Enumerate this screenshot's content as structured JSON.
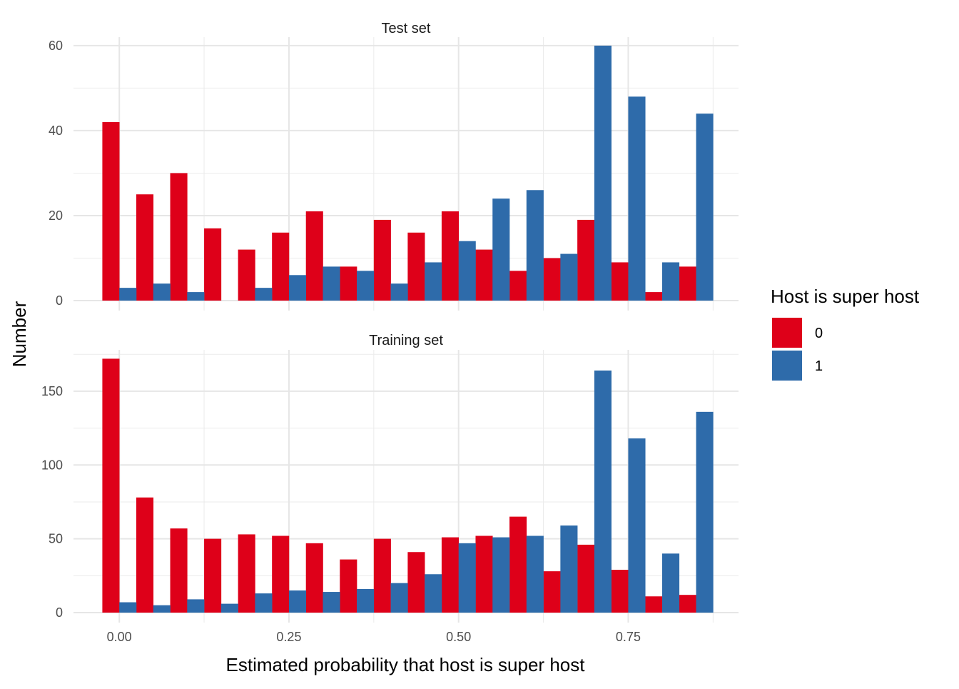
{
  "chart_data": {
    "type": "bar",
    "xlabel": "Estimated probability that host is super host",
    "ylabel": "Number",
    "xlim": [
      -0.0675,
      0.9125
    ],
    "x_ticks": [
      0.0,
      0.25,
      0.5,
      0.75
    ],
    "x_tick_labels": [
      "0.00",
      "0.25",
      "0.50",
      "0.75"
    ],
    "grid": true,
    "legend": {
      "title": "Host is super host",
      "position": "right",
      "entries": [
        {
          "label": "0",
          "color": "#DE0019"
        },
        {
          "label": "1",
          "color": "#2E6BAA"
        }
      ]
    },
    "bin_centers": [
      0.0,
      0.05,
      0.1,
      0.15,
      0.2,
      0.25,
      0.3,
      0.35,
      0.4,
      0.45,
      0.5,
      0.55,
      0.6,
      0.65,
      0.7,
      0.75,
      0.8,
      0.85
    ],
    "panels": [
      {
        "strip": "Test set",
        "ylim": [
          0,
          62
        ],
        "y_ticks": [
          0,
          20,
          40,
          60
        ],
        "y_tick_labels": [
          "0",
          "20",
          "40",
          "60"
        ],
        "series": [
          {
            "name": "0",
            "values": [
              42,
              25,
              30,
              17,
              12,
              16,
              21,
              8,
              19,
              16,
              21,
              12,
              7,
              10,
              19,
              9,
              2,
              8
            ]
          },
          {
            "name": "1",
            "values": [
              3,
              4,
              2,
              0,
              3,
              6,
              8,
              7,
              4,
              9,
              14,
              24,
              26,
              11,
              60,
              48,
              9,
              44
            ]
          }
        ]
      },
      {
        "strip": "Training set",
        "ylim": [
          0,
          178
        ],
        "y_ticks": [
          0,
          50,
          100,
          150
        ],
        "y_tick_labels": [
          "0",
          "50",
          "100",
          "150"
        ],
        "series": [
          {
            "name": "0",
            "values": [
              172,
              78,
              57,
              50,
              53,
              52,
              47,
              36,
              50,
              41,
              51,
              52,
              65,
              28,
              46,
              29,
              11,
              12
            ]
          },
          {
            "name": "1",
            "values": [
              7,
              5,
              9,
              6,
              13,
              15,
              14,
              16,
              20,
              26,
              47,
              51,
              52,
              59,
              164,
              118,
              40,
              136
            ]
          }
        ]
      }
    ]
  }
}
